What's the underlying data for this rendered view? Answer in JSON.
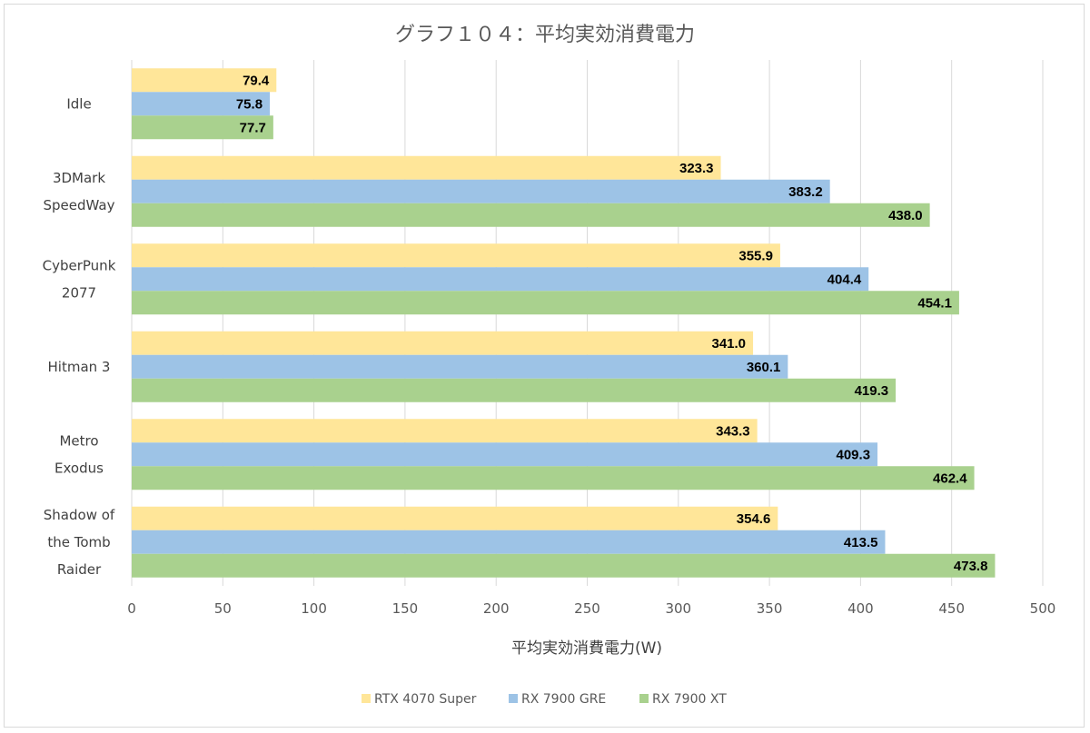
{
  "chart_data": {
    "type": "bar",
    "orientation": "horizontal",
    "title": "グラフ１０４：平均実効消費電力",
    "xlabel": "平均実効消費電力(W)",
    "ylabel": "",
    "xlim": [
      0,
      500
    ],
    "ticks": [
      0,
      50,
      100,
      150,
      200,
      250,
      300,
      350,
      400,
      450,
      500
    ],
    "grid": true,
    "legend_position": "bottom",
    "categories": [
      [
        "Idle"
      ],
      [
        "3DMark",
        "SpeedWay"
      ],
      [
        "CyberPunk",
        "2077"
      ],
      [
        "Hitman 3"
      ],
      [
        "Metro",
        "Exodus"
      ],
      [
        "Shadow of",
        "the Tomb",
        "Raider"
      ]
    ],
    "series": [
      {
        "name": "RTX 4070 Super",
        "color": "#ffe699",
        "values": [
          79.4,
          323.3,
          355.9,
          341.0,
          343.3,
          354.6
        ]
      },
      {
        "name": "RX 7900 GRE",
        "color": "#9dc3e6",
        "values": [
          75.8,
          383.2,
          404.4,
          360.1,
          409.3,
          413.5
        ]
      },
      {
        "name": "RX 7900 XT",
        "color": "#a9d18e",
        "values": [
          77.7,
          438.0,
          454.1,
          419.3,
          462.4,
          473.8
        ]
      }
    ]
  }
}
